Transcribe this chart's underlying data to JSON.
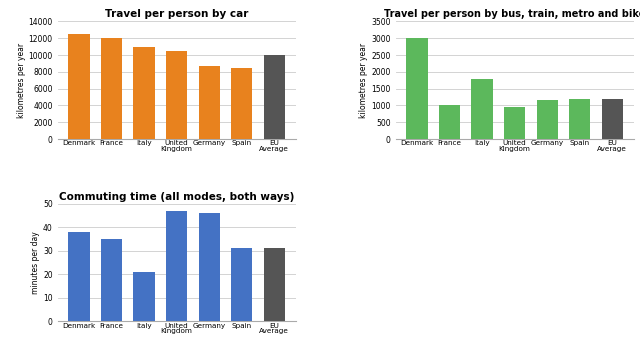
{
  "countries": [
    "Denmark",
    "France",
    "Italy",
    "United\nKingdom",
    "Germany",
    "Spain",
    "EU\nAverage"
  ],
  "car_values": [
    12500,
    12000,
    11000,
    10500,
    8700,
    8500,
    10000
  ],
  "bus_values": [
    3000,
    1000,
    1800,
    950,
    1150,
    1200,
    1200
  ],
  "commute_values": [
    38,
    35,
    21,
    47,
    46,
    31,
    31
  ],
  "car_color": "#E8821E",
  "bus_color": "#5CB85C",
  "commute_color": "#4472C4",
  "avg_color": "#555555",
  "title_car": "Travel per person by car",
  "title_bus": "Travel per person by bus, train, metro and bike",
  "title_commute": "Commuting time (all modes, both ways)",
  "ylabel_car": "kilometres per year",
  "ylabel_bus": "kilometres per year",
  "ylabel_commute": "minutes per day",
  "ylim_car": [
    0,
    14000
  ],
  "ylim_bus": [
    0,
    3500
  ],
  "ylim_commute": [
    0,
    50
  ],
  "yticks_car": [
    0,
    2000,
    4000,
    6000,
    8000,
    10000,
    12000,
    14000
  ],
  "yticks_bus": [
    0,
    500,
    1000,
    1500,
    2000,
    2500,
    3000,
    3500
  ],
  "yticks_commute": [
    0,
    10,
    20,
    30,
    40,
    50
  ],
  "grid_color": "#CCCCCC",
  "bg_color": "#FFFFFF"
}
